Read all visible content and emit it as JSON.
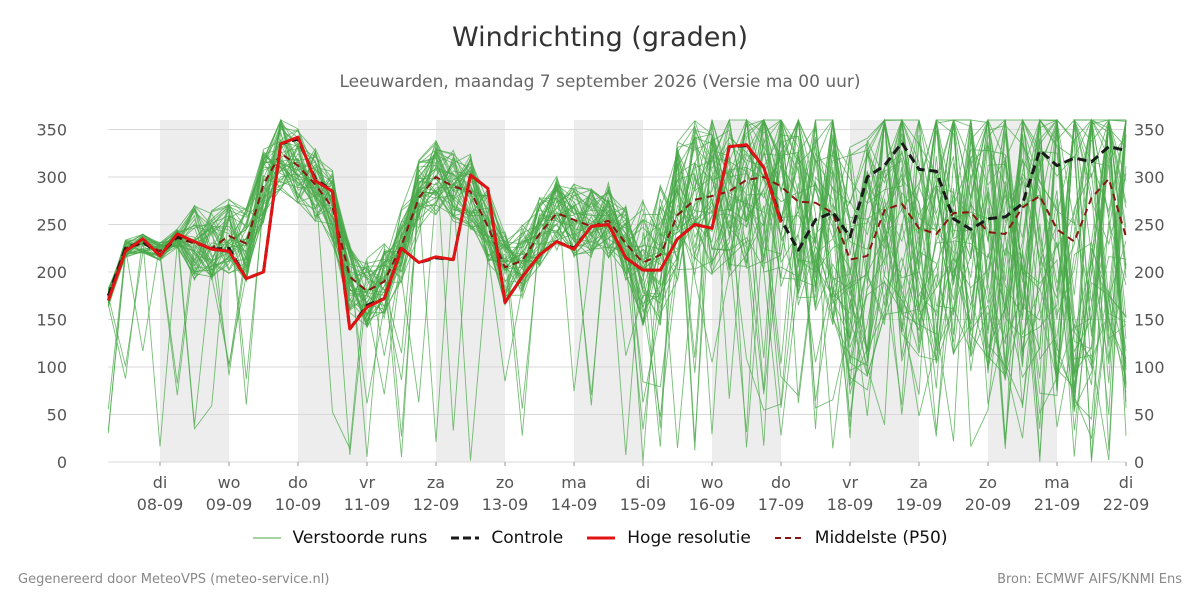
{
  "chart_data": {
    "type": "line",
    "title": "Windrichting (graden)",
    "subtitle": "Leeuwarden, maandag  7 september 2026 (Versie ma 00 uur)",
    "ylim": [
      0,
      360
    ],
    "yticks": [
      0,
      50,
      100,
      150,
      200,
      250,
      300,
      350
    ],
    "xlim": [
      -0.75,
      14
    ],
    "x_ticks": [
      {
        "day": "di",
        "date": "08-09"
      },
      {
        "day": "wo",
        "date": "09-09"
      },
      {
        "day": "do",
        "date": "10-09"
      },
      {
        "day": "vr",
        "date": "11-09"
      },
      {
        "day": "za",
        "date": "12-09"
      },
      {
        "day": "zo",
        "date": "13-09"
      },
      {
        "day": "ma",
        "date": "14-09"
      },
      {
        "day": "di",
        "date": "15-09"
      },
      {
        "day": "wo",
        "date": "16-09"
      },
      {
        "day": "do",
        "date": "17-09"
      },
      {
        "day": "vr",
        "date": "18-09"
      },
      {
        "day": "za",
        "date": "19-09"
      },
      {
        "day": "zo",
        "date": "20-09"
      },
      {
        "day": "ma",
        "date": "21-09"
      },
      {
        "day": "di",
        "date": "22-09"
      }
    ],
    "shaded_days": [
      0,
      2,
      4,
      6,
      8,
      10,
      12
    ],
    "grid": true,
    "legend_position": "bottom",
    "legend": [
      "Verstoorde runs",
      "Controle",
      "Hoge resolutie",
      "Middelste (P50)"
    ],
    "series": [
      {
        "name": "Controle",
        "color": "#1a1a1a",
        "dash": "dashed",
        "points": [
          [
            -0.75,
            175
          ],
          [
            -0.5,
            225
          ],
          [
            -0.25,
            232
          ],
          [
            0,
            218
          ],
          [
            0.25,
            237
          ],
          [
            0.5,
            232
          ],
          [
            0.75,
            224
          ],
          [
            1,
            225
          ],
          [
            1.25,
            193
          ],
          [
            1.5,
            200
          ],
          [
            1.75,
            335
          ],
          [
            2,
            340
          ],
          [
            2.25,
            298
          ],
          [
            2.5,
            285
          ],
          [
            2.75,
            140
          ],
          [
            3,
            165
          ],
          [
            3.25,
            172
          ],
          [
            3.5,
            225
          ],
          [
            3.75,
            210
          ],
          [
            4,
            215
          ],
          [
            4.25,
            213
          ],
          [
            4.5,
            302
          ],
          [
            4.75,
            288
          ],
          [
            5,
            168
          ],
          [
            5.25,
            195
          ],
          [
            5.5,
            218
          ],
          [
            5.75,
            232
          ],
          [
            6,
            225
          ],
          [
            6.25,
            248
          ],
          [
            6.5,
            250
          ],
          [
            6.75,
            215
          ],
          [
            7,
            202
          ],
          [
            7.25,
            202
          ],
          [
            7.5,
            235
          ],
          [
            7.75,
            250
          ],
          [
            8,
            246
          ],
          [
            8.25,
            332
          ],
          [
            8.5,
            333
          ],
          [
            8.75,
            310
          ],
          [
            9,
            255
          ],
          [
            9.25,
            223
          ],
          [
            9.5,
            255
          ],
          [
            9.75,
            263
          ],
          [
            10,
            237
          ],
          [
            10.25,
            300
          ],
          [
            10.5,
            312
          ],
          [
            10.75,
            336
          ],
          [
            11,
            308
          ],
          [
            11.25,
            306
          ],
          [
            11.5,
            256
          ],
          [
            11.75,
            245
          ],
          [
            12,
            256
          ],
          [
            12.25,
            258
          ],
          [
            12.5,
            272
          ],
          [
            12.75,
            328
          ],
          [
            13,
            312
          ],
          [
            13.25,
            320
          ],
          [
            13.5,
            316
          ],
          [
            13.75,
            332
          ],
          [
            14,
            328
          ]
        ]
      },
      {
        "name": "Hoge resolutie",
        "color": "#e01414",
        "dash": "solid",
        "points": [
          [
            -0.75,
            170
          ],
          [
            -0.5,
            222
          ],
          [
            -0.25,
            235
          ],
          [
            0,
            217
          ],
          [
            0.25,
            240
          ],
          [
            0.5,
            232
          ],
          [
            0.75,
            224
          ],
          [
            1,
            222
          ],
          [
            1.25,
            193
          ],
          [
            1.5,
            200
          ],
          [
            1.75,
            335
          ],
          [
            2,
            342
          ],
          [
            2.25,
            296
          ],
          [
            2.5,
            285
          ],
          [
            2.75,
            140
          ],
          [
            3,
            163
          ],
          [
            3.25,
            172
          ],
          [
            3.5,
            225
          ],
          [
            3.75,
            210
          ],
          [
            4,
            216
          ],
          [
            4.25,
            213
          ],
          [
            4.5,
            302
          ],
          [
            4.75,
            288
          ],
          [
            5,
            168
          ],
          [
            5.25,
            195
          ],
          [
            5.5,
            218
          ],
          [
            5.75,
            232
          ],
          [
            6,
            224
          ],
          [
            6.25,
            248
          ],
          [
            6.5,
            250
          ],
          [
            6.75,
            215
          ],
          [
            7,
            202
          ],
          [
            7.25,
            202
          ],
          [
            7.5,
            235
          ],
          [
            7.75,
            250
          ],
          [
            8,
            246
          ],
          [
            8.25,
            332
          ],
          [
            8.5,
            334
          ],
          [
            8.75,
            310
          ],
          [
            9,
            252
          ]
        ]
      },
      {
        "name": "Middelste (P50)",
        "color": "#8b1414",
        "dash": "dashed",
        "points": [
          [
            -0.75,
            173
          ],
          [
            -0.5,
            225
          ],
          [
            -0.25,
            230
          ],
          [
            0,
            222
          ],
          [
            0.25,
            236
          ],
          [
            0.5,
            230
          ],
          [
            0.75,
            225
          ],
          [
            1,
            238
          ],
          [
            1.25,
            230
          ],
          [
            1.5,
            292
          ],
          [
            1.75,
            325
          ],
          [
            2,
            312
          ],
          [
            2.25,
            292
          ],
          [
            2.5,
            268
          ],
          [
            2.75,
            195
          ],
          [
            3,
            180
          ],
          [
            3.25,
            190
          ],
          [
            3.5,
            228
          ],
          [
            3.75,
            278
          ],
          [
            4,
            300
          ],
          [
            4.25,
            290
          ],
          [
            4.5,
            285
          ],
          [
            4.75,
            248
          ],
          [
            5,
            205
          ],
          [
            5.25,
            212
          ],
          [
            5.5,
            240
          ],
          [
            5.75,
            262
          ],
          [
            6,
            255
          ],
          [
            6.25,
            248
          ],
          [
            6.5,
            254
          ],
          [
            6.75,
            230
          ],
          [
            7,
            210
          ],
          [
            7.25,
            218
          ],
          [
            7.5,
            260
          ],
          [
            7.75,
            276
          ],
          [
            8,
            280
          ],
          [
            8.25,
            285
          ],
          [
            8.5,
            297
          ],
          [
            8.75,
            300
          ],
          [
            9,
            290
          ],
          [
            9.25,
            274
          ],
          [
            9.5,
            273
          ],
          [
            9.75,
            262
          ],
          [
            10,
            213
          ],
          [
            10.25,
            217
          ],
          [
            10.5,
            265
          ],
          [
            10.75,
            272
          ],
          [
            11,
            246
          ],
          [
            11.25,
            240
          ],
          [
            11.5,
            262
          ],
          [
            11.75,
            263
          ],
          [
            12,
            242
          ],
          [
            12.25,
            240
          ],
          [
            12.5,
            268
          ],
          [
            12.75,
            280
          ],
          [
            13,
            245
          ],
          [
            13.25,
            232
          ],
          [
            13.5,
            278
          ],
          [
            13.75,
            298
          ],
          [
            14,
            237
          ]
        ]
      }
    ]
  },
  "legend_colors": {
    "perturbed": "#4aa84a",
    "control": "#1a1a1a",
    "high_res": "#e01414",
    "median": "#8b1414"
  },
  "footer": {
    "left": "Gegenereerd door MeteoVPS (meteo-service.nl)",
    "right": "Bron: ECMWF AIFS/KNMI Ens"
  }
}
